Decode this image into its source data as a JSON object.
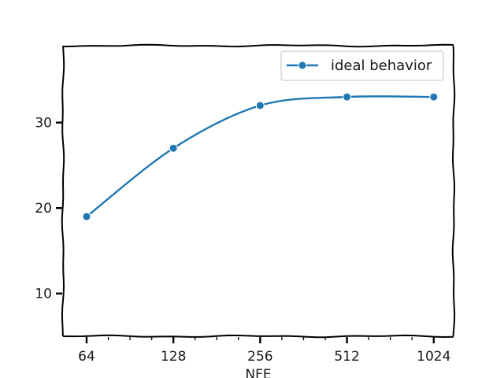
{
  "chart_data": {
    "type": "line",
    "title": "",
    "xlabel": "NFE",
    "ylabel": "",
    "x_scale": "log2",
    "categories": [
      "64",
      "128",
      "256",
      "512",
      "1024"
    ],
    "x": [
      64,
      128,
      256,
      512,
      1024
    ],
    "xlim": [
      53,
      1200
    ],
    "ylim": [
      5,
      39
    ],
    "y_ticks": [
      10,
      20,
      30
    ],
    "grid": false,
    "legend": "top-right",
    "series": [
      {
        "name": "ideal behavior",
        "color": "#1f77b4",
        "marker": "circle",
        "values": [
          19,
          27,
          32,
          33,
          33
        ]
      }
    ]
  }
}
